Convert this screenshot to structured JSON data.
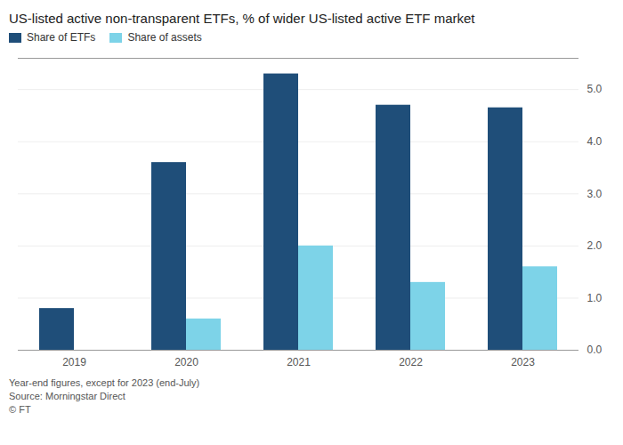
{
  "chart_data": {
    "type": "bar",
    "title": "US-listed active non-transparent ETFs, % of wider US-listed active ETF market",
    "categories": [
      "2019",
      "2020",
      "2021",
      "2022",
      "2023"
    ],
    "series": [
      {
        "name": "Share of ETFs",
        "color": "#1f4e79",
        "values": [
          0.8,
          3.6,
          5.3,
          4.7,
          4.65
        ]
      },
      {
        "name": "Share of assets",
        "color": "#7dd3e8",
        "values": [
          0.0,
          0.6,
          2.0,
          1.3,
          1.6
        ]
      }
    ],
    "ylim": [
      0,
      5.6
    ],
    "yticks": [
      0,
      1,
      2,
      3,
      4,
      5
    ],
    "grid": true,
    "legend": "upper left",
    "annotations": [
      "Year-end figures, except for 2023 (end-July)",
      "Source: Morningstar Direct",
      "© FT"
    ]
  }
}
